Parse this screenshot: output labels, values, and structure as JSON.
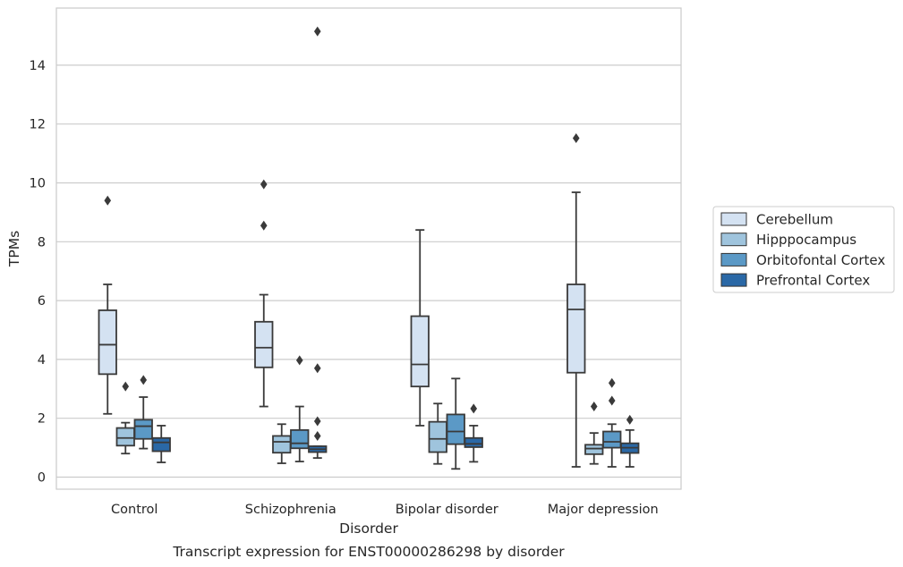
{
  "chart_data": {
    "type": "box",
    "title": "Transcript expression for ENST00000286298 by disorder",
    "xlabel": "Disorder",
    "ylabel": "TPMs",
    "ylim": [
      -0.4,
      15.7
    ],
    "yticks": [
      0,
      2,
      4,
      6,
      8,
      10,
      12,
      14
    ],
    "grid": true,
    "legend_position": "right",
    "categories": [
      "Control",
      "Schizophrenia",
      "Bipolar disorder",
      "Major depression"
    ],
    "series": [
      {
        "name": "Cerebellum",
        "color": "#d4e2f2",
        "boxes": [
          {
            "whisker_low": 2.15,
            "q1": 3.5,
            "median": 4.5,
            "q3": 5.67,
            "whisker_high": 6.55,
            "outliers": [
              9.4
            ]
          },
          {
            "whisker_low": 2.4,
            "q1": 3.73,
            "median": 4.4,
            "q3": 5.28,
            "whisker_high": 6.2,
            "outliers": [
              8.55,
              9.95
            ]
          },
          {
            "whisker_low": 1.75,
            "q1": 3.08,
            "median": 3.83,
            "q3": 5.47,
            "whisker_high": 8.4,
            "outliers": []
          },
          {
            "whisker_low": 0.35,
            "q1": 3.55,
            "median": 5.7,
            "q3": 6.55,
            "whisker_high": 9.68,
            "outliers": [
              11.52
            ]
          }
        ]
      },
      {
        "name": "Hipppocampus",
        "color": "#9fc4dd",
        "boxes": [
          {
            "whisker_low": 0.8,
            "q1": 1.07,
            "median": 1.33,
            "q3": 1.67,
            "whisker_high": 1.85,
            "outliers": [
              3.08
            ]
          },
          {
            "whisker_low": 0.47,
            "q1": 0.83,
            "median": 1.2,
            "q3": 1.4,
            "whisker_high": 1.8,
            "outliers": []
          },
          {
            "whisker_low": 0.45,
            "q1": 0.85,
            "median": 1.3,
            "q3": 1.88,
            "whisker_high": 2.5,
            "outliers": []
          },
          {
            "whisker_low": 0.45,
            "q1": 0.78,
            "median": 0.97,
            "q3": 1.1,
            "whisker_high": 1.5,
            "outliers": [
              2.4
            ]
          }
        ]
      },
      {
        "name": "Orbitofontal Cortex",
        "color": "#5b99c6",
        "boxes": [
          {
            "whisker_low": 0.97,
            "q1": 1.3,
            "median": 1.73,
            "q3": 1.95,
            "whisker_high": 2.72,
            "outliers": [
              3.3
            ]
          },
          {
            "whisker_low": 0.53,
            "q1": 0.98,
            "median": 1.15,
            "q3": 1.6,
            "whisker_high": 2.4,
            "outliers": [
              3.97
            ]
          },
          {
            "whisker_low": 0.28,
            "q1": 1.12,
            "median": 1.55,
            "q3": 2.13,
            "whisker_high": 3.35,
            "outliers": []
          },
          {
            "whisker_low": 0.35,
            "q1": 1.0,
            "median": 1.2,
            "q3": 1.55,
            "whisker_high": 1.8,
            "outliers": [
              2.6,
              3.2
            ]
          }
        ]
      },
      {
        "name": "Prefrontal Cortex",
        "color": "#2a68a6",
        "boxes": [
          {
            "whisker_low": 0.5,
            "q1": 0.88,
            "median": 1.18,
            "q3": 1.33,
            "whisker_high": 1.75,
            "outliers": []
          },
          {
            "whisker_low": 0.65,
            "q1": 0.85,
            "median": 0.95,
            "q3": 1.05,
            "whisker_high": 1.05,
            "outliers": [
              1.4,
              1.9,
              3.7,
              15.15
            ]
          },
          {
            "whisker_low": 0.52,
            "q1": 1.02,
            "median": 1.13,
            "q3": 1.33,
            "whisker_high": 1.75,
            "outliers": [
              2.33
            ]
          },
          {
            "whisker_low": 0.35,
            "q1": 0.82,
            "median": 1.0,
            "q3": 1.15,
            "whisker_high": 1.6,
            "outliers": [
              1.95
            ]
          }
        ]
      }
    ]
  }
}
